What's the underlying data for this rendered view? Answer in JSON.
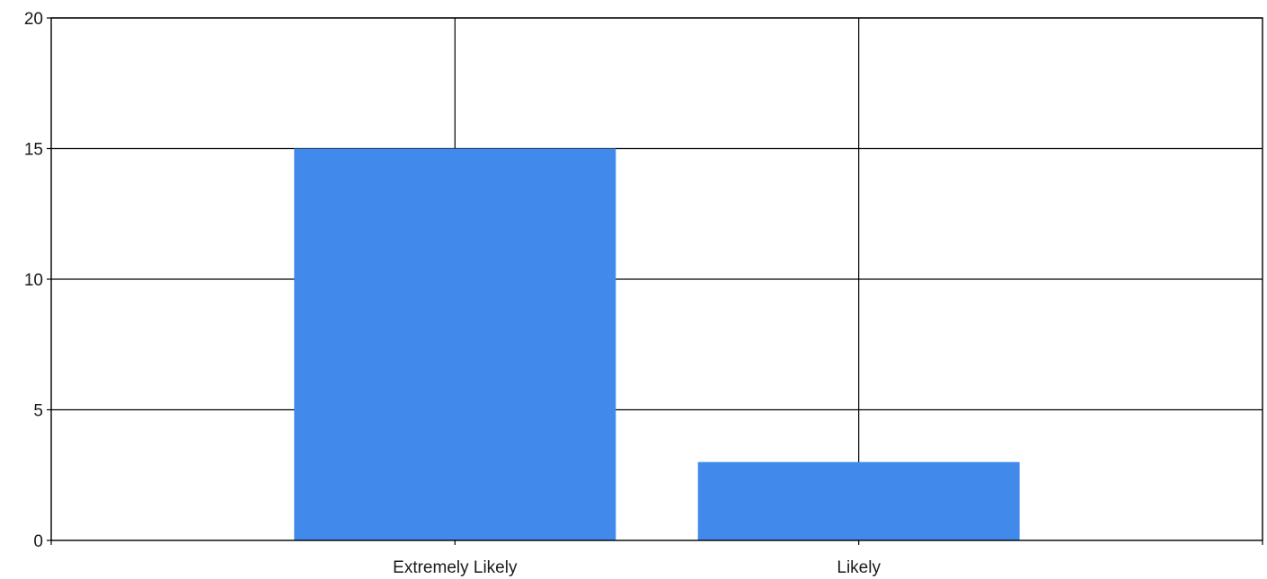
{
  "chart_data": {
    "type": "bar",
    "title": "",
    "xlabel": "",
    "ylabel": "",
    "categories": [
      "Extremely Likely",
      "Likely"
    ],
    "values": [
      15,
      3
    ],
    "ylim": [
      0,
      20
    ],
    "yticks": [
      0,
      5,
      10,
      15,
      20
    ],
    "xlim": [
      0,
      3
    ],
    "grid": true,
    "legend": "none",
    "bar_color": "#418AEB",
    "grid_color": "#000000"
  }
}
